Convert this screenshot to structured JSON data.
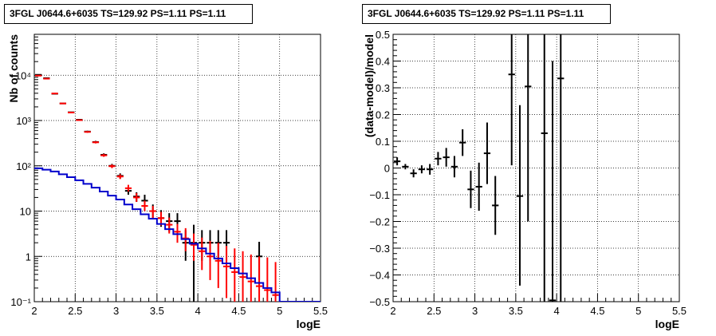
{
  "chart_data": [
    {
      "type": "histogram",
      "title": "3FGL J0644.6+6035 TS=129.92 PS=1.11 PS=1.11",
      "xlabel": "logE",
      "ylabel": "Nb of counts",
      "xlim": [
        2,
        5.5
      ],
      "ylim": [
        0.1,
        80000
      ],
      "yscale": "log",
      "grid": true,
      "x_ticks": [
        "2",
        "2.5",
        "3",
        "3.5",
        "4",
        "4.5",
        "5",
        "5.5"
      ],
      "y_ticks": [
        "10⁻¹",
        "1",
        "10",
        "10²",
        "10³",
        "10⁴"
      ],
      "y_tick_values": [
        0.1,
        1,
        10,
        100,
        1000,
        10000
      ],
      "series": [
        {
          "color": "#000000",
          "style": "errorbar",
          "points": [
            {
              "x": 2.05,
              "y": 10200,
              "lo": 10000,
              "hi": 10400
            },
            {
              "x": 2.15,
              "y": 8600,
              "lo": 8450,
              "hi": 8750
            },
            {
              "x": 2.25,
              "y": 3900,
              "lo": 3800,
              "hi": 4000
            },
            {
              "x": 2.35,
              "y": 2380,
              "lo": 2320,
              "hi": 2440
            },
            {
              "x": 2.45,
              "y": 1520,
              "lo": 1480,
              "hi": 1560
            },
            {
              "x": 2.55,
              "y": 1040,
              "lo": 1000,
              "hi": 1080
            },
            {
              "x": 2.65,
              "y": 570,
              "lo": 545,
              "hi": 595
            },
            {
              "x": 2.75,
              "y": 335,
              "lo": 315,
              "hi": 355
            },
            {
              "x": 2.85,
              "y": 175,
              "lo": 162,
              "hi": 188
            },
            {
              "x": 2.95,
              "y": 100,
              "lo": 90,
              "hi": 110
            },
            {
              "x": 3.05,
              "y": 60,
              "lo": 53,
              "hi": 68
            },
            {
              "x": 3.15,
              "y": 28,
              "lo": 23,
              "hi": 34
            },
            {
              "x": 3.25,
              "y": 21,
              "lo": 16,
              "hi": 26
            },
            {
              "x": 3.35,
              "y": 17,
              "lo": 13,
              "hi": 23
            },
            {
              "x": 3.45,
              "y": 10,
              "lo": 7,
              "hi": 14
            },
            {
              "x": 3.55,
              "y": 7,
              "lo": 4.5,
              "hi": 10.5
            },
            {
              "x": 3.65,
              "y": 6,
              "lo": 3.5,
              "hi": 9
            },
            {
              "x": 3.75,
              "y": 6,
              "lo": 3.5,
              "hi": 9
            },
            {
              "x": 3.85,
              "y": 2,
              "lo": 0.8,
              "hi": 3.8
            },
            {
              "x": 3.95,
              "y": 2,
              "lo": 0.1,
              "hi": 5
            },
            {
              "x": 4.05,
              "y": 2,
              "lo": 0.8,
              "hi": 3.8
            },
            {
              "x": 4.15,
              "y": 2,
              "lo": 0.8,
              "hi": 3.8
            },
            {
              "x": 4.25,
              "y": 2,
              "lo": 0.8,
              "hi": 3.8
            },
            {
              "x": 4.35,
              "y": 2,
              "lo": 0.8,
              "hi": 3.8
            },
            {
              "x": 4.75,
              "y": 1,
              "lo": 0.3,
              "hi": 2.1
            }
          ]
        },
        {
          "color": "#ff0000",
          "style": "errorbar",
          "points": [
            {
              "x": 2.05,
              "y": 9800,
              "lo": 9600,
              "hi": 10000
            },
            {
              "x": 2.15,
              "y": 8400,
              "lo": 8250,
              "hi": 8550
            },
            {
              "x": 2.25,
              "y": 3950,
              "lo": 3850,
              "hi": 4050
            },
            {
              "x": 2.35,
              "y": 2380,
              "lo": 2320,
              "hi": 2440
            },
            {
              "x": 2.45,
              "y": 1500,
              "lo": 1460,
              "hi": 1540
            },
            {
              "x": 2.55,
              "y": 1020,
              "lo": 985,
              "hi": 1055
            },
            {
              "x": 2.65,
              "y": 560,
              "lo": 535,
              "hi": 585
            },
            {
              "x": 2.75,
              "y": 330,
              "lo": 312,
              "hi": 348
            },
            {
              "x": 2.85,
              "y": 170,
              "lo": 158,
              "hi": 183
            },
            {
              "x": 2.95,
              "y": 98,
              "lo": 89,
              "hi": 107
            },
            {
              "x": 3.05,
              "y": 58,
              "lo": 51,
              "hi": 65
            },
            {
              "x": 3.15,
              "y": 32,
              "lo": 27,
              "hi": 38
            },
            {
              "x": 3.25,
              "y": 20,
              "lo": 16,
              "hi": 25
            },
            {
              "x": 3.35,
              "y": 13,
              "lo": 10,
              "hi": 17
            },
            {
              "x": 3.45,
              "y": 10,
              "lo": 7,
              "hi": 13
            },
            {
              "x": 3.55,
              "y": 7,
              "lo": 4.8,
              "hi": 9.6
            },
            {
              "x": 3.65,
              "y": 5,
              "lo": 3.2,
              "hi": 7.2
            },
            {
              "x": 3.75,
              "y": 3.5,
              "lo": 2,
              "hi": 5.2
            },
            {
              "x": 3.85,
              "y": 2.5,
              "lo": 1.3,
              "hi": 4.2
            },
            {
              "x": 3.95,
              "y": 1.8,
              "lo": 0.8,
              "hi": 3.2
            },
            {
              "x": 4.05,
              "y": 1.3,
              "lo": 0.5,
              "hi": 2.6
            },
            {
              "x": 4.15,
              "y": 1.0,
              "lo": 0.3,
              "hi": 2.2
            },
            {
              "x": 4.25,
              "y": 0.8,
              "lo": 0.2,
              "hi": 2.0
            },
            {
              "x": 4.35,
              "y": 0.6,
              "lo": 0.12,
              "hi": 1.7
            },
            {
              "x": 4.45,
              "y": 0.45,
              "lo": 0.1,
              "hi": 1.5
            },
            {
              "x": 4.55,
              "y": 0.35,
              "lo": 0.1,
              "hi": 1.3
            },
            {
              "x": 4.65,
              "y": 0.28,
              "lo": 0.1,
              "hi": 1.1
            },
            {
              "x": 4.75,
              "y": 0.22,
              "lo": 0.1,
              "hi": 1.0
            },
            {
              "x": 4.85,
              "y": 0.18,
              "lo": 0.1,
              "hi": 0.95
            },
            {
              "x": 4.95,
              "y": 0.14,
              "lo": 0.1,
              "hi": 0.75
            }
          ]
        },
        {
          "color": "#0000cc",
          "style": "step",
          "bin_width": 0.1,
          "points": [
            {
              "x": 2.05,
              "y": 88
            },
            {
              "x": 2.15,
              "y": 82
            },
            {
              "x": 2.25,
              "y": 75
            },
            {
              "x": 2.35,
              "y": 65
            },
            {
              "x": 2.45,
              "y": 56
            },
            {
              "x": 2.55,
              "y": 48
            },
            {
              "x": 2.65,
              "y": 40
            },
            {
              "x": 2.75,
              "y": 33
            },
            {
              "x": 2.85,
              "y": 27
            },
            {
              "x": 2.95,
              "y": 22
            },
            {
              "x": 3.05,
              "y": 18
            },
            {
              "x": 3.15,
              "y": 14
            },
            {
              "x": 3.25,
              "y": 11
            },
            {
              "x": 3.35,
              "y": 8.5
            },
            {
              "x": 3.45,
              "y": 6.8
            },
            {
              "x": 3.55,
              "y": 5.2
            },
            {
              "x": 3.65,
              "y": 4.0
            },
            {
              "x": 3.75,
              "y": 3.1
            },
            {
              "x": 3.85,
              "y": 2.4
            },
            {
              "x": 3.95,
              "y": 1.9
            },
            {
              "x": 4.05,
              "y": 1.5
            },
            {
              "x": 4.15,
              "y": 1.15
            },
            {
              "x": 4.25,
              "y": 0.9
            },
            {
              "x": 4.35,
              "y": 0.7
            },
            {
              "x": 4.45,
              "y": 0.55
            },
            {
              "x": 4.55,
              "y": 0.42
            },
            {
              "x": 4.65,
              "y": 0.33
            },
            {
              "x": 4.75,
              "y": 0.26
            },
            {
              "x": 4.85,
              "y": 0.2
            },
            {
              "x": 4.95,
              "y": 0.16
            },
            {
              "x": 5.05,
              "y": 0.1
            },
            {
              "x": 5.15,
              "y": 0.1
            },
            {
              "x": 5.25,
              "y": 0.1
            },
            {
              "x": 5.35,
              "y": 0.1
            },
            {
              "x": 5.45,
              "y": 0.1
            }
          ]
        }
      ]
    },
    {
      "type": "scatter",
      "title": "3FGL J0644.6+6035 TS=129.92 PS=1.11 PS=1.11",
      "xlabel": "logE",
      "ylabel": "(data-model)/model",
      "xlim": [
        2,
        5.5
      ],
      "ylim": [
        -0.5,
        0.5
      ],
      "yscale": "linear",
      "grid": true,
      "x_ticks": [
        "2",
        "2.5",
        "3",
        "3.5",
        "4",
        "4.5",
        "5",
        "5.5"
      ],
      "y_ticks": [
        "−0.5",
        "−0.4",
        "−0.3",
        "−0.2",
        "−0.1",
        "0",
        "0.1",
        "0.2",
        "0.3",
        "0.4",
        "0.5"
      ],
      "y_tick_values": [
        -0.5,
        -0.4,
        -0.3,
        -0.2,
        -0.1,
        0,
        0.1,
        0.2,
        0.3,
        0.4,
        0.5
      ],
      "series": [
        {
          "color": "#000000",
          "style": "errorbar",
          "points": [
            {
              "x": 2.05,
              "y": 0.025,
              "lo": 0.01,
              "hi": 0.04
            },
            {
              "x": 2.15,
              "y": 0.005,
              "lo": -0.005,
              "hi": 0.015
            },
            {
              "x": 2.25,
              "y": -0.02,
              "lo": -0.035,
              "hi": -0.005
            },
            {
              "x": 2.35,
              "y": -0.005,
              "lo": -0.02,
              "hi": 0.01
            },
            {
              "x": 2.45,
              "y": -0.005,
              "lo": -0.025,
              "hi": 0.015
            },
            {
              "x": 2.55,
              "y": 0.035,
              "lo": 0.01,
              "hi": 0.06
            },
            {
              "x": 2.65,
              "y": 0.04,
              "lo": 0.005,
              "hi": 0.075
            },
            {
              "x": 2.75,
              "y": 0.005,
              "lo": -0.035,
              "hi": 0.045
            },
            {
              "x": 2.85,
              "y": 0.095,
              "lo": 0.045,
              "hi": 0.145
            },
            {
              "x": 2.95,
              "y": -0.08,
              "lo": -0.15,
              "hi": -0.01
            },
            {
              "x": 3.05,
              "y": -0.07,
              "lo": -0.16,
              "hi": 0.02
            },
            {
              "x": 3.15,
              "y": 0.055,
              "lo": -0.06,
              "hi": 0.17
            },
            {
              "x": 3.25,
              "y": -0.14,
              "lo": -0.25,
              "hi": -0.03
            },
            {
              "x": 3.45,
              "y": 0.35,
              "lo": 0.01,
              "hi": 0.5
            },
            {
              "x": 3.55,
              "y": -0.105,
              "lo": -0.44,
              "hi": 0.235
            },
            {
              "x": 3.65,
              "y": 0.305,
              "lo": -0.2,
              "hi": 0.5
            },
            {
              "x": 3.85,
              "y": 0.13,
              "lo": -0.5,
              "hi": 0.5
            },
            {
              "x": 3.95,
              "y": -0.495,
              "lo": -0.5,
              "hi": 0.4
            },
            {
              "x": 4.05,
              "y": 0.335,
              "lo": -0.5,
              "hi": 0.5
            }
          ]
        }
      ]
    }
  ]
}
